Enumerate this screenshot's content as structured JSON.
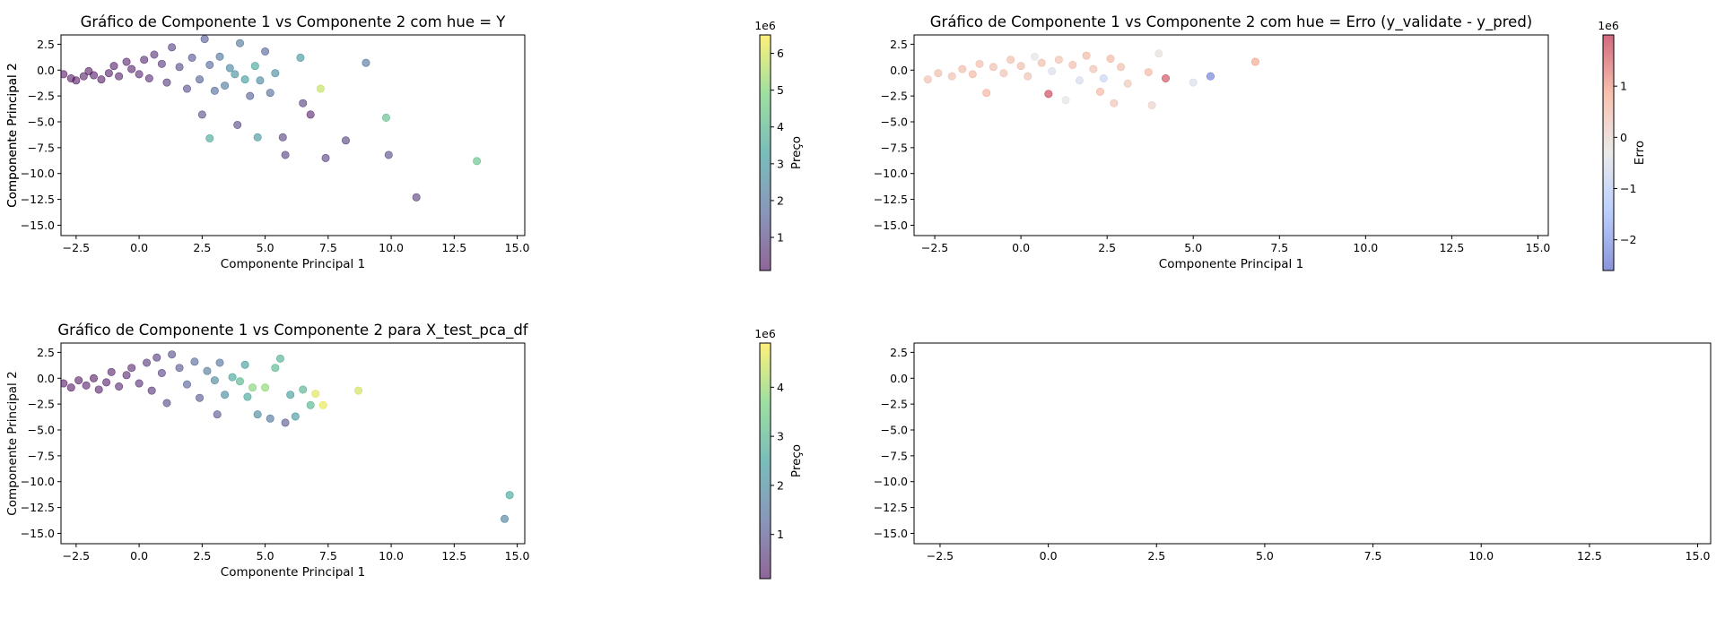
{
  "chart_data": [
    {
      "type": "scatter",
      "title": "Gráfico de Componente 1 vs Componente 2 com hue = Y",
      "xlabel": "Componente Principal 1",
      "ylabel": "Componente Principal 2",
      "xlim": [
        -3.1,
        15.3
      ],
      "ylim": [
        -16.0,
        3.4
      ],
      "xticks": [
        -2.5,
        0.0,
        2.5,
        5.0,
        7.5,
        10.0,
        12.5,
        15.0
      ],
      "yticks": [
        2.5,
        0.0,
        -2.5,
        -5.0,
        -7.5,
        -10.0,
        -12.5,
        -15.0
      ],
      "xtick_labels": [
        "−2.5",
        "0.0",
        "2.5",
        "5.0",
        "7.5",
        "10.0",
        "12.5",
        "15.0"
      ],
      "ytick_labels": [
        "2.5",
        "0.0",
        "−2.5",
        "−5.0",
        "−7.5",
        "−10.0",
        "−12.5",
        "−15.0"
      ],
      "colormap": "viridis",
      "colorbar": {
        "label": "Preço",
        "exponent": "1e6",
        "range": [
          0.1,
          6.5
        ],
        "ticks": [
          1,
          2,
          3,
          4,
          5,
          6
        ],
        "tick_labels": [
          "1",
          "2",
          "3",
          "4",
          "5",
          "6"
        ]
      },
      "series": [
        {
          "points": [
            [
              -3.0,
              -0.4,
              0.1
            ],
            [
              -2.7,
              -0.8,
              0.1
            ],
            [
              -2.5,
              -1.0,
              0.1
            ],
            [
              -2.2,
              -0.6,
              0.2
            ],
            [
              -2.0,
              -0.1,
              0.1
            ],
            [
              -1.8,
              -0.5,
              0.2
            ],
            [
              -1.5,
              -0.9,
              0.2
            ],
            [
              -1.2,
              -0.3,
              0.2
            ],
            [
              -1.0,
              0.4,
              0.2
            ],
            [
              -0.8,
              -0.6,
              0.3
            ],
            [
              -0.5,
              0.8,
              0.3
            ],
            [
              -0.3,
              0.1,
              0.3
            ],
            [
              0.0,
              -0.4,
              0.4
            ],
            [
              0.2,
              1.0,
              0.4
            ],
            [
              0.4,
              -0.8,
              0.5
            ],
            [
              0.6,
              1.5,
              0.6
            ],
            [
              0.9,
              0.6,
              0.7
            ],
            [
              1.1,
              -1.2,
              0.8
            ],
            [
              1.3,
              2.2,
              0.9
            ],
            [
              1.6,
              0.3,
              1.0
            ],
            [
              1.9,
              -1.8,
              1.2
            ],
            [
              2.1,
              1.2,
              1.3
            ],
            [
              2.4,
              -0.9,
              1.5
            ],
            [
              2.6,
              3.0,
              1.4
            ],
            [
              2.8,
              0.5,
              1.7
            ],
            [
              3.0,
              -2.0,
              1.8
            ],
            [
              3.2,
              1.3,
              2.0
            ],
            [
              3.4,
              -1.5,
              2.2
            ],
            [
              3.6,
              0.2,
              2.5
            ],
            [
              3.8,
              -0.4,
              2.8
            ],
            [
              4.0,
              2.6,
              2.1
            ],
            [
              4.2,
              -0.9,
              3.2
            ],
            [
              4.4,
              -2.5,
              1.5
            ],
            [
              4.6,
              0.4,
              3.5
            ],
            [
              4.8,
              -1.0,
              2.6
            ],
            [
              5.0,
              1.8,
              1.6
            ],
            [
              5.2,
              -2.2,
              1.8
            ],
            [
              5.4,
              -0.3,
              2.7
            ],
            [
              5.7,
              -6.5,
              0.9
            ],
            [
              5.8,
              -8.2,
              0.8
            ],
            [
              6.4,
              1.2,
              3.0
            ],
            [
              6.5,
              -3.2,
              0.8
            ],
            [
              6.8,
              -4.3,
              0.3
            ],
            [
              7.2,
              -1.8,
              5.8
            ],
            [
              7.4,
              -8.5,
              0.9
            ],
            [
              8.2,
              -6.8,
              0.9
            ],
            [
              9.0,
              0.7,
              2.0
            ],
            [
              9.8,
              -4.6,
              4.2
            ],
            [
              9.9,
              -8.2,
              1.0
            ],
            [
              11.0,
              -12.3,
              0.8
            ],
            [
              13.4,
              -8.8,
              4.3
            ],
            [
              2.8,
              -6.6,
              3.5
            ],
            [
              4.7,
              -6.5,
              3.0
            ],
            [
              3.9,
              -5.3,
              1.0
            ],
            [
              2.5,
              -4.3,
              1.2
            ]
          ]
        }
      ]
    },
    {
      "type": "scatter",
      "title": "Gráfico de Componente 1 vs Componente 2 com hue = Erro (y_validate - y_pred)",
      "xlabel": "Componente Principal 1",
      "ylabel": "Componente Principal 2",
      "xlim": [
        -3.1,
        15.3
      ],
      "ylim": [
        -16.0,
        3.4
      ],
      "xticks": [
        -2.5,
        0.0,
        2.5,
        5.0,
        7.5,
        10.0,
        12.5,
        15.0
      ],
      "yticks": [
        2.5,
        0.0,
        -2.5,
        -5.0,
        -7.5,
        -10.0,
        -12.5,
        -15.0
      ],
      "xtick_labels": [
        "−2.5",
        "0.0",
        "2.5",
        "5.0",
        "7.5",
        "10.0",
        "12.5",
        "15.0"
      ],
      "ytick_labels": [
        "2.5",
        "0.0",
        "−2.5",
        "−5.0",
        "−7.5",
        "−10.0",
        "−12.5",
        "−15.0"
      ],
      "colormap": "coolwarm",
      "colorbar": {
        "label": "Erro",
        "exponent": "1e6",
        "range": [
          -2.6,
          2.0
        ],
        "ticks": [
          -2,
          -1,
          0,
          1
        ],
        "tick_labels": [
          "−2",
          "−1",
          "0",
          "1"
        ]
      },
      "series": [
        {
          "points": [
            [
              -2.7,
              -0.9,
              0.4
            ],
            [
              -2.4,
              -0.3,
              0.5
            ],
            [
              -2.0,
              -0.6,
              0.4
            ],
            [
              -1.7,
              0.1,
              0.5
            ],
            [
              -1.4,
              -0.4,
              0.6
            ],
            [
              -1.2,
              0.6,
              0.5
            ],
            [
              -1.0,
              -2.2,
              0.7
            ],
            [
              -0.8,
              0.3,
              0.5
            ],
            [
              -0.5,
              -0.3,
              0.4
            ],
            [
              -0.3,
              1.0,
              0.5
            ],
            [
              0.0,
              0.4,
              0.5
            ],
            [
              0.2,
              -0.6,
              0.4
            ],
            [
              0.4,
              1.3,
              -0.3
            ],
            [
              0.6,
              0.7,
              0.5
            ],
            [
              0.8,
              -2.3,
              1.8
            ],
            [
              0.9,
              -0.1,
              -0.5
            ],
            [
              1.1,
              1.0,
              0.4
            ],
            [
              1.3,
              -2.9,
              -0.3
            ],
            [
              1.5,
              0.5,
              0.5
            ],
            [
              1.7,
              -1.0,
              -0.6
            ],
            [
              1.9,
              1.4,
              0.6
            ],
            [
              2.1,
              0.1,
              0.4
            ],
            [
              2.3,
              -2.1,
              0.6
            ],
            [
              2.4,
              -0.8,
              -0.8
            ],
            [
              2.6,
              1.1,
              0.6
            ],
            [
              2.7,
              -3.2,
              0.4
            ],
            [
              2.9,
              0.3,
              0.5
            ],
            [
              3.1,
              -1.3,
              0.3
            ],
            [
              3.7,
              -0.2,
              0.6
            ],
            [
              3.8,
              -3.4,
              0.1
            ],
            [
              4.0,
              1.6,
              -0.2
            ],
            [
              4.2,
              -0.8,
              1.7
            ],
            [
              5.0,
              -1.2,
              -0.5
            ],
            [
              5.5,
              -0.6,
              -2.3
            ],
            [
              6.8,
              0.8,
              0.9
            ]
          ]
        }
      ]
    },
    {
      "type": "scatter",
      "title": "Gráfico de Componente 1 vs Componente 2 para X_test_pca_df",
      "xlabel": "Componente Principal 1",
      "ylabel": "Componente Principal 2",
      "xlim": [
        -3.1,
        15.3
      ],
      "ylim": [
        -16.0,
        3.4
      ],
      "xticks": [
        -2.5,
        0.0,
        2.5,
        5.0,
        7.5,
        10.0,
        12.5,
        15.0
      ],
      "yticks": [
        2.5,
        0.0,
        -2.5,
        -5.0,
        -7.5,
        -10.0,
        -12.5,
        -15.0
      ],
      "xtick_labels": [
        "−2.5",
        "0.0",
        "2.5",
        "5.0",
        "7.5",
        "10.0",
        "12.5",
        "15.0"
      ],
      "ytick_labels": [
        "2.5",
        "0.0",
        "−2.5",
        "−5.0",
        "−7.5",
        "−10.0",
        "−12.5",
        "−15.0"
      ],
      "colormap": "viridis",
      "colorbar": {
        "label": "Preço",
        "exponent": "1e6",
        "range": [
          0.1,
          4.9
        ],
        "ticks": [
          1,
          2,
          3,
          4
        ],
        "tick_labels": [
          "1",
          "2",
          "3",
          "4"
        ]
      },
      "series": [
        {
          "points": [
            [
              -3.0,
              -0.5,
              0.1
            ],
            [
              -2.7,
              -0.9,
              0.1
            ],
            [
              -2.4,
              -0.2,
              0.1
            ],
            [
              -2.1,
              -0.7,
              0.2
            ],
            [
              -1.8,
              0.0,
              0.1
            ],
            [
              -1.6,
              -1.1,
              0.2
            ],
            [
              -1.3,
              -0.4,
              0.2
            ],
            [
              -1.1,
              0.6,
              0.2
            ],
            [
              -0.8,
              -0.8,
              0.3
            ],
            [
              -0.5,
              0.3,
              0.3
            ],
            [
              -0.3,
              1.0,
              0.3
            ],
            [
              0.0,
              -0.5,
              0.4
            ],
            [
              0.3,
              1.5,
              0.5
            ],
            [
              0.5,
              -1.2,
              0.5
            ],
            [
              0.7,
              2.0,
              0.6
            ],
            [
              0.9,
              0.5,
              0.7
            ],
            [
              1.1,
              -2.4,
              0.8
            ],
            [
              1.3,
              2.3,
              0.9
            ],
            [
              1.6,
              1.0,
              1.0
            ],
            [
              1.9,
              -0.6,
              1.2
            ],
            [
              2.2,
              1.6,
              1.3
            ],
            [
              2.4,
              -1.9,
              1.0
            ],
            [
              2.7,
              0.7,
              1.6
            ],
            [
              3.0,
              -0.2,
              1.9
            ],
            [
              3.1,
              -3.5,
              1.0
            ],
            [
              3.2,
              1.5,
              1.5
            ],
            [
              3.4,
              -1.6,
              2.0
            ],
            [
              3.7,
              0.1,
              2.6
            ],
            [
              4.0,
              -0.3,
              3.0
            ],
            [
              4.2,
              1.3,
              2.4
            ],
            [
              4.3,
              -1.8,
              2.6
            ],
            [
              4.5,
              -0.9,
              3.8
            ],
            [
              4.7,
              -3.5,
              2.0
            ],
            [
              5.0,
              -0.9,
              3.9
            ],
            [
              5.2,
              -3.9,
              1.5
            ],
            [
              5.4,
              1.0,
              3.0
            ],
            [
              5.6,
              1.9,
              2.8
            ],
            [
              5.8,
              -4.3,
              1.0
            ],
            [
              6.0,
              -1.6,
              2.4
            ],
            [
              6.2,
              -3.7,
              2.3
            ],
            [
              6.5,
              -1.1,
              2.9
            ],
            [
              6.8,
              -2.6,
              3.0
            ],
            [
              7.0,
              -1.5,
              4.6
            ],
            [
              7.3,
              -2.6,
              4.7
            ],
            [
              8.7,
              -1.2,
              4.5
            ],
            [
              14.5,
              -13.6,
              1.8
            ],
            [
              14.7,
              -11.3,
              2.6
            ]
          ]
        }
      ]
    },
    {
      "type": "scatter",
      "title": "",
      "xlabel": "",
      "ylabel": "",
      "xlim": [
        -3.1,
        15.3
      ],
      "ylim": [
        -16.0,
        3.4
      ],
      "xticks": [
        -2.5,
        0.0,
        2.5,
        5.0,
        7.5,
        10.0,
        12.5,
        15.0
      ],
      "yticks": [
        2.5,
        0.0,
        -2.5,
        -5.0,
        -7.5,
        -10.0,
        -12.5,
        -15.0
      ],
      "xtick_labels": [
        "−2.5",
        "0.0",
        "2.5",
        "5.0",
        "7.5",
        "10.0",
        "12.5",
        "15.0"
      ],
      "ytick_labels": [
        "2.5",
        "0.0",
        "−2.5",
        "−5.0",
        "−7.5",
        "−10.0",
        "−12.5",
        "−15.0"
      ],
      "series": []
    }
  ]
}
